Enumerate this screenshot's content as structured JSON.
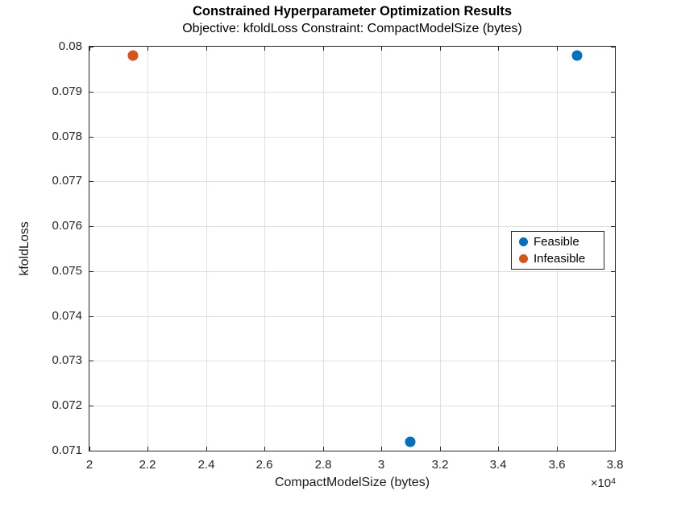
{
  "figure": {
    "title": "Constrained Hyperparameter Optimization Results",
    "subtitle": "Objective: kfoldLoss Constraint: CompactModelSize (bytes)"
  },
  "chart_data": {
    "type": "scatter",
    "title": "Constrained Hyperparameter Optimization Results",
    "subtitle": "Objective: kfoldLoss Constraint: CompactModelSize (bytes)",
    "xlabel": "CompactModelSize (bytes)",
    "ylabel": "kfoldLoss",
    "x_multiplier_base": "×10",
    "x_multiplier_exp": "4",
    "xlim": [
      20000,
      38000
    ],
    "ylim": [
      0.071,
      0.08
    ],
    "grid": true,
    "x_tick_values": [
      20000,
      22000,
      24000,
      26000,
      28000,
      30000,
      32000,
      34000,
      36000,
      38000
    ],
    "x_tick_labels": [
      "2",
      "2.2",
      "2.4",
      "2.6",
      "2.8",
      "3",
      "3.2",
      "3.4",
      "3.6",
      "3.8"
    ],
    "y_tick_values": [
      0.071,
      0.072,
      0.073,
      0.074,
      0.075,
      0.076,
      0.077,
      0.078,
      0.079,
      0.08
    ],
    "y_tick_labels": [
      "0.071",
      "0.072",
      "0.073",
      "0.074",
      "0.075",
      "0.076",
      "0.077",
      "0.078",
      "0.079",
      "0.08"
    ],
    "series": [
      {
        "name": "Feasible",
        "color": "#0072BD",
        "points": [
          [
            36700,
            0.0798
          ],
          [
            31000,
            0.0712
          ]
        ]
      },
      {
        "name": "Infeasible",
        "color": "#D95319",
        "points": [
          [
            21500,
            0.0798
          ]
        ]
      }
    ],
    "legend": {
      "position": "east",
      "entries": [
        {
          "label": "Feasible",
          "color": "#0072BD"
        },
        {
          "label": "Infeasible",
          "color": "#D95319"
        }
      ]
    }
  },
  "colors": {
    "feasible": "#0072BD",
    "infeasible": "#D95319",
    "axis": "#262626",
    "grid": "#e0e0e0",
    "background": "#ffffff"
  }
}
